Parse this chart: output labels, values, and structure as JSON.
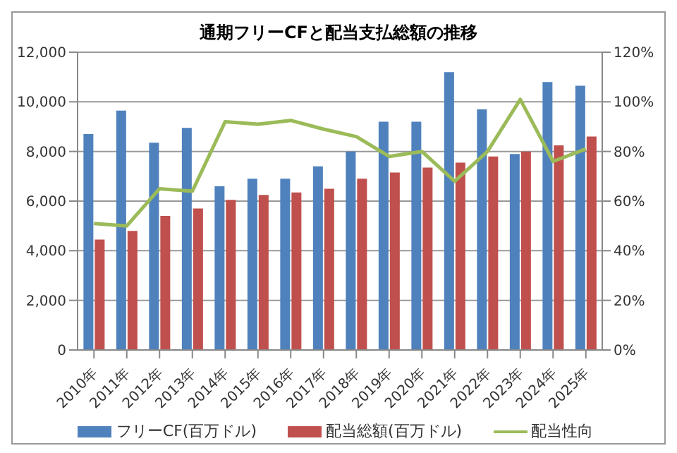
{
  "chart_data": {
    "type": "bar",
    "title": "通期フリーCFと配当支払総額の推移",
    "categories": [
      "2010年",
      "2011年",
      "2012年",
      "2013年",
      "2014年",
      "2015年",
      "2016年",
      "2017年",
      "2018年",
      "2019年",
      "2020年",
      "2021年",
      "2022年",
      "2023年",
      "2024年",
      "2025年"
    ],
    "series": [
      {
        "name": "フリーCF(百万ドル)",
        "color": "#4f81bd",
        "values": [
          8700,
          9650,
          8350,
          8950,
          6600,
          6900,
          6900,
          7400,
          8000,
          9200,
          9200,
          11200,
          9700,
          7900,
          10800,
          10650
        ]
      },
      {
        "name": "配当総額(百万ドル)",
        "color": "#c0504d",
        "values": [
          4450,
          4800,
          5400,
          5700,
          6050,
          6250,
          6350,
          6500,
          6900,
          7150,
          7350,
          7550,
          7800,
          8000,
          8250,
          8600
        ]
      },
      {
        "name": "配当性向",
        "type": "line",
        "axis": "y2",
        "color": "#9bbb59",
        "values": [
          51,
          50,
          65,
          64,
          92,
          91,
          92.5,
          89,
          86,
          78,
          80,
          68,
          80,
          101,
          76,
          81
        ]
      }
    ],
    "ylim": [
      0,
      12000
    ],
    "yticks": [
      {
        "value": 0,
        "label": "0"
      },
      {
        "value": 2000,
        "label": "2,000"
      },
      {
        "value": 4000,
        "label": "4,000"
      },
      {
        "value": 6000,
        "label": "6,000"
      },
      {
        "value": 8000,
        "label": "8,000"
      },
      {
        "value": 10000,
        "label": "10,000"
      },
      {
        "value": 12000,
        "label": "12,000"
      }
    ],
    "y2lim": [
      0,
      120
    ],
    "y2ticks": [
      {
        "value": 0,
        "label": "0%"
      },
      {
        "value": 20,
        "label": "20%"
      },
      {
        "value": 40,
        "label": "40%"
      },
      {
        "value": 60,
        "label": "60%"
      },
      {
        "value": 80,
        "label": "80%"
      },
      {
        "value": 100,
        "label": "100%"
      },
      {
        "value": 120,
        "label": "120%"
      }
    ],
    "grid": "y",
    "legend": "bottom",
    "marker": "none",
    "line_style": "solid"
  }
}
